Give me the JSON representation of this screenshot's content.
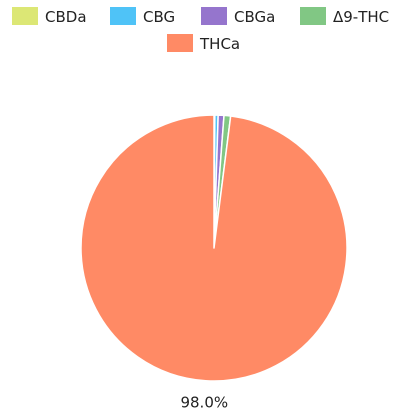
{
  "chart_data": {
    "type": "pie",
    "categories": [
      "CBDa",
      "CBG",
      "CBGa",
      "Δ9-THC",
      "THCa"
    ],
    "values": [
      0.1,
      0.4,
      0.7,
      0.8,
      98.0
    ],
    "colors": [
      "#dce775",
      "#4fc3f7",
      "#9575cd",
      "#81c784",
      "#ff8a65"
    ],
    "data_labels": [
      "",
      "",
      "",
      "",
      "98.0%"
    ],
    "legend_position": "top",
    "start_angle_deg": 0,
    "direction": "clockwise"
  }
}
